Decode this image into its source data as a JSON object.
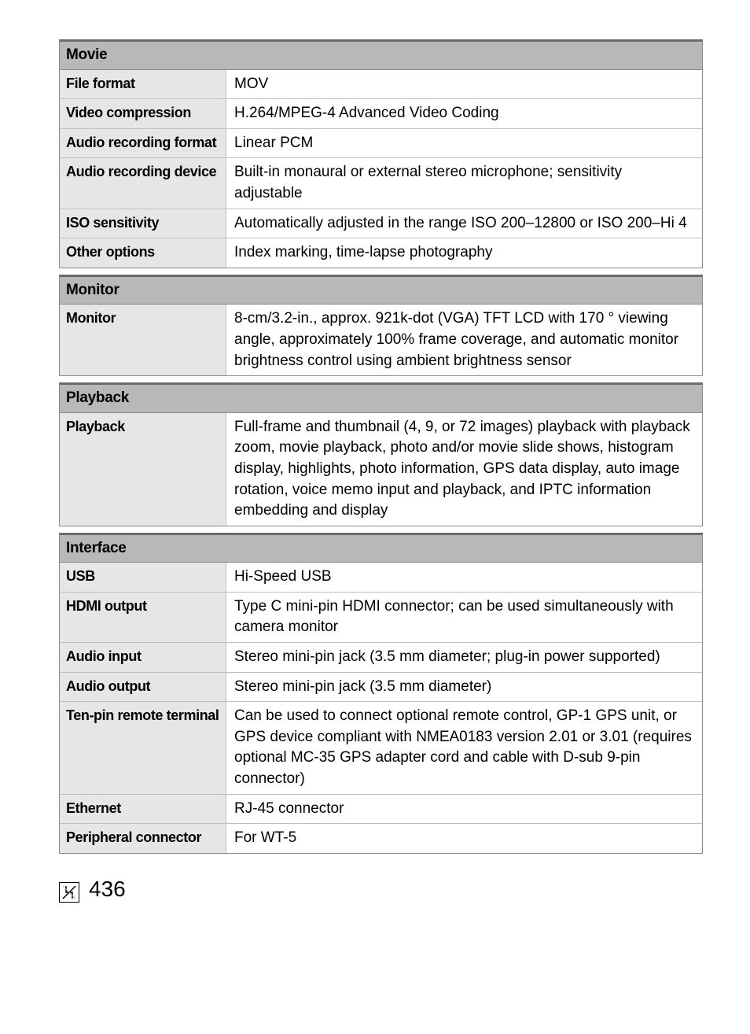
{
  "sections": [
    {
      "title": "Movie",
      "rows": [
        {
          "label": "File format",
          "value": "MOV"
        },
        {
          "label": "Video compression",
          "value": "H.264/MPEG-4 Advanced Video Coding"
        },
        {
          "label": "Audio recording format",
          "value": "Linear PCM"
        },
        {
          "label": "Audio recording device",
          "value": "Built-in monaural or external stereo microphone; sensitivity adjustable"
        },
        {
          "label": "ISO sensitivity",
          "value": "Automatically adjusted in the range ISO 200–12800 or ISO 200–Hi 4"
        },
        {
          "label": "Other options",
          "value": "Index marking, time-lapse photography"
        }
      ]
    },
    {
      "title": "Monitor",
      "rows": [
        {
          "label": "Monitor",
          "value": "8-cm/3.2-in., approx. 921k-dot (VGA) TFT LCD with 170 ° viewing angle, approximately 100% frame coverage, and automatic monitor brightness control using ambient brightness sensor"
        }
      ]
    },
    {
      "title": "Playback",
      "rows": [
        {
          "label": "Playback",
          "value": "Full-frame and thumbnail (4, 9, or 72 images) playback with playback zoom, movie playback, photo and/or movie slide shows, histogram display, highlights, photo information, GPS data display, auto image rotation, voice memo input and playback, and IPTC information embedding and display"
        }
      ]
    },
    {
      "title": "Interface",
      "rows": [
        {
          "label": "USB",
          "value": "Hi-Speed USB"
        },
        {
          "label": "HDMI output",
          "value": "Type C mini-pin HDMI connector; can be used simultaneously with camera monitor"
        },
        {
          "label": "Audio input",
          "value": "Stereo mini-pin jack (3.5 mm diameter; plug-in power supported)"
        },
        {
          "label": "Audio output",
          "value": "Stereo mini-pin jack (3.5 mm diameter)"
        },
        {
          "label": "Ten-pin remote terminal",
          "value": "Can be used to connect optional remote control, GP-1 GPS unit, or GPS device compliant with NMEA0183 version 2.01 or 3.01 (requires optional MC-35 GPS adapter cord and cable with D-sub 9-pin connector)"
        },
        {
          "label": "Ethernet",
          "value": "RJ-45 connector"
        },
        {
          "label": "Peripheral connector",
          "value": "For WT-5"
        }
      ]
    }
  ],
  "page_number": "436",
  "styling": {
    "body_font_size": 19,
    "label_font_size": 18,
    "header_font_size": 19,
    "pagenum_font_size": 28,
    "label_col_width": 212,
    "section_header_bg": "#b8b8b8",
    "label_bg": "#e6e6e6",
    "border_color": "#8a8a8a",
    "top_border_color": "#6a6a6a",
    "row_border_color": "#c0c0c0",
    "page_bg": "#ffffff",
    "text_color": "#000000"
  }
}
